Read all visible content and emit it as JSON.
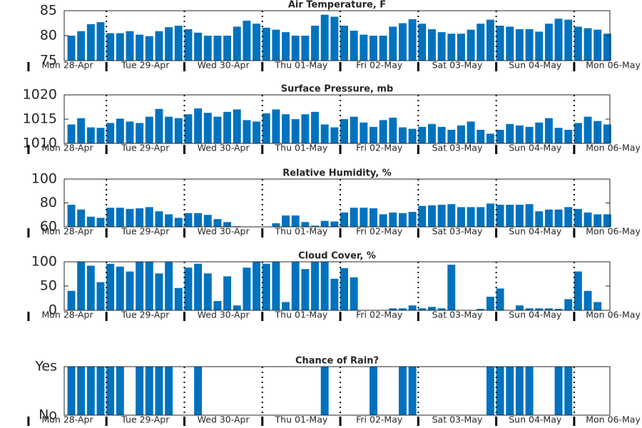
{
  "chart_data": [
    {
      "type": "bar",
      "title": "Air Temperature, F",
      "color": "#0072bd",
      "x": [
        12,
        15,
        18,
        21,
        24,
        27,
        30,
        33,
        36,
        39,
        42,
        45,
        48,
        51,
        54,
        57,
        60,
        63,
        66,
        69,
        72,
        75,
        78,
        81,
        84,
        87,
        90,
        93,
        96,
        99,
        102,
        105,
        108,
        111,
        114,
        117,
        120,
        123,
        126,
        129,
        132,
        135,
        138,
        141,
        144,
        147,
        150,
        153,
        156,
        159,
        162,
        165,
        168,
        171,
        174,
        177
      ],
      "values": [
        80.0,
        80.9,
        82.3,
        82.7,
        80.5,
        80.5,
        80.9,
        80.2,
        79.9,
        80.9,
        81.7,
        82.0,
        81.3,
        80.6,
        80.0,
        80.0,
        80.0,
        81.8,
        83.0,
        82.4,
        81.6,
        81.2,
        80.7,
        80.0,
        80.0,
        82.0,
        84.2,
        83.8,
        82.0,
        81.0,
        80.2,
        80.0,
        80.0,
        81.8,
        82.5,
        83.3,
        82.4,
        81.3,
        80.7,
        80.4,
        80.4,
        81.2,
        82.4,
        83.2,
        82.0,
        81.8,
        81.3,
        81.3,
        80.8,
        82.4,
        83.4,
        83.2,
        81.8,
        81.5,
        81.2,
        80.4
      ],
      "xlim": [
        11,
        179
      ],
      "xticks": [
        {
          "value": 12,
          "label": "Mon 28-Apr"
        },
        {
          "value": 36,
          "label": "Tue 29-Apr"
        },
        {
          "value": 60,
          "label": "Wed 30-Apr"
        },
        {
          "value": 84,
          "label": "Thu 01-May"
        },
        {
          "value": 108,
          "label": "Fri 02-May"
        },
        {
          "value": 132,
          "label": "Sat 03-May"
        },
        {
          "value": 156,
          "label": "Sun 04-May"
        },
        {
          "value": 180,
          "label": "Mon 06-May"
        }
      ],
      "ylim": [
        75,
        85
      ],
      "yticks": [
        75,
        80,
        85
      ]
    },
    {
      "type": "bar",
      "title": "Surface Pressure, mb",
      "color": "#0072bd",
      "x": [
        12,
        15,
        18,
        21,
        24,
        27,
        30,
        33,
        36,
        39,
        42,
        45,
        48,
        51,
        54,
        57,
        60,
        63,
        66,
        69,
        72,
        75,
        78,
        81,
        84,
        87,
        90,
        93,
        96,
        99,
        102,
        105,
        108,
        111,
        114,
        117,
        120,
        123,
        126,
        129,
        132,
        135,
        138,
        141,
        144,
        147,
        150,
        153,
        156,
        159,
        162,
        165,
        168,
        171,
        174,
        177
      ],
      "values": [
        1013.9,
        1015.2,
        1013.3,
        1013.2,
        1014.2,
        1015.1,
        1014.5,
        1014.2,
        1015.5,
        1017.1,
        1015.5,
        1015.2,
        1016.0,
        1017.2,
        1016.3,
        1015.5,
        1016.5,
        1017.0,
        1014.8,
        1014.5,
        1016.2,
        1017.0,
        1016.0,
        1015.0,
        1016.0,
        1016.5,
        1013.9,
        1013.3,
        1015.0,
        1015.5,
        1014.3,
        1013.4,
        1014.8,
        1015.3,
        1013.3,
        1013.0,
        1013.4,
        1014.0,
        1013.4,
        1012.8,
        1013.7,
        1014.5,
        1012.8,
        1012.0,
        1012.8,
        1014.0,
        1013.7,
        1013.4,
        1014.3,
        1015.2,
        1013.2,
        1012.8,
        1014.2,
        1015.5,
        1014.6,
        1013.9
      ],
      "xlim": [
        11,
        179
      ],
      "xticks": [
        {
          "value": 12,
          "label": "Mon 28-Apr"
        },
        {
          "value": 36,
          "label": "Tue 29-Apr"
        },
        {
          "value": 60,
          "label": "Wed 30-Apr"
        },
        {
          "value": 84,
          "label": "Thu 01-May"
        },
        {
          "value": 108,
          "label": "Fri 02-May"
        },
        {
          "value": 132,
          "label": "Sat 03-May"
        },
        {
          "value": 156,
          "label": "Sun 04-May"
        },
        {
          "value": 180,
          "label": "Mon 06-May"
        }
      ],
      "ylim": [
        1010,
        1020
      ],
      "yticks": [
        1010,
        1015,
        1020
      ]
    },
    {
      "type": "bar",
      "title": "Relative Humidity, %",
      "color": "#0072bd",
      "x": [
        12,
        15,
        18,
        21,
        24,
        27,
        30,
        33,
        36,
        39,
        42,
        45,
        48,
        51,
        54,
        57,
        60,
        63,
        66,
        69,
        72,
        75,
        78,
        81,
        84,
        87,
        90,
        93,
        96,
        99,
        102,
        105,
        108,
        111,
        114,
        117,
        120,
        123,
        126,
        129,
        132,
        135,
        138,
        141,
        144,
        147,
        150,
        153,
        156,
        159,
        162,
        165,
        168,
        171,
        174,
        177
      ],
      "values": [
        78.5,
        74.5,
        68.5,
        67.5,
        76,
        76,
        75,
        75.5,
        76.5,
        73,
        70.5,
        67.5,
        71.5,
        71.5,
        70,
        66.5,
        64,
        60.5,
        58,
        58,
        58,
        63,
        69.5,
        69.5,
        64,
        61,
        65,
        64.5,
        72,
        76,
        76,
        75.5,
        70.5,
        72,
        71.5,
        72.5,
        77.5,
        78,
        78.5,
        79,
        76.5,
        76.5,
        76.5,
        79.5,
        78.5,
        78.5,
        78.5,
        79,
        73,
        74.5,
        74.5,
        76.5,
        75,
        72,
        70.5,
        70.5
      ],
      "xlim": [
        11,
        179
      ],
      "xticks": [
        {
          "value": 12,
          "label": "Mon 28-Apr"
        },
        {
          "value": 36,
          "label": "Tue 29-Apr"
        },
        {
          "value": 60,
          "label": "Wed 30-Apr"
        },
        {
          "value": 84,
          "label": "Thu 01-May"
        },
        {
          "value": 108,
          "label": "Fri 02-May"
        },
        {
          "value": 132,
          "label": "Sat 03-May"
        },
        {
          "value": 156,
          "label": "Sun 04-May"
        },
        {
          "value": 180,
          "label": "Mon 06-May"
        }
      ],
      "ylim": [
        60,
        100
      ],
      "yticks": [
        60,
        80,
        100
      ]
    },
    {
      "type": "bar",
      "title": "Cloud Cover, %",
      "color": "#0072bd",
      "x": [
        12,
        15,
        18,
        21,
        24,
        27,
        30,
        33,
        36,
        39,
        42,
        45,
        48,
        51,
        54,
        57,
        60,
        63,
        66,
        69,
        72,
        75,
        78,
        81,
        84,
        87,
        90,
        93,
        96,
        99,
        102,
        105,
        108,
        111,
        114,
        117,
        120,
        123,
        126,
        129,
        132,
        135,
        138,
        141,
        144,
        147,
        150,
        153,
        156,
        159,
        162,
        165,
        168,
        171,
        174,
        177
      ],
      "values": [
        40,
        100,
        92,
        58,
        96,
        90,
        80,
        100,
        100,
        76,
        100,
        46,
        88,
        96,
        76,
        19,
        70,
        10,
        88,
        100,
        96,
        100,
        17,
        100,
        85,
        100,
        100,
        65,
        87,
        68,
        0,
        0,
        0,
        4,
        4,
        10,
        4,
        7,
        4,
        94,
        0,
        0,
        3,
        28,
        45,
        0,
        10,
        4,
        4,
        4,
        3,
        23,
        80,
        40,
        17,
        0
      ],
      "xlim": [
        11,
        179
      ],
      "xticks": [
        {
          "value": 12,
          "label": "Mon 28-Apr"
        },
        {
          "value": 36,
          "label": "Tue 29-Apr"
        },
        {
          "value": 60,
          "label": "Wed 30-Apr"
        },
        {
          "value": 84,
          "label": "Thu 01-May"
        },
        {
          "value": 108,
          "label": "Fri 02-May"
        },
        {
          "value": 132,
          "label": "Sat 03-May"
        },
        {
          "value": 156,
          "label": "Sun 04-May"
        },
        {
          "value": 180,
          "label": "Mon 06-May"
        }
      ],
      "ylim": [
        0,
        100
      ],
      "yticks": [
        0,
        50,
        100
      ]
    },
    {
      "type": "bar",
      "title": "Chance of Rain?",
      "color": "#0072bd",
      "x": [
        12,
        15,
        18,
        21,
        24,
        27,
        30,
        33,
        36,
        39,
        42,
        45,
        48,
        51,
        54,
        57,
        60,
        63,
        66,
        69,
        72,
        75,
        78,
        81,
        84,
        87,
        90,
        93,
        96,
        99,
        102,
        105,
        108,
        111,
        114,
        117,
        120,
        123,
        126,
        129,
        132,
        135,
        138,
        141,
        144,
        147,
        150,
        153,
        156,
        159,
        162,
        165,
        168,
        171,
        174,
        177
      ],
      "values": [
        1,
        1,
        1,
        1,
        1,
        1,
        0,
        1,
        1,
        1,
        1,
        0,
        0,
        1,
        0,
        0,
        0,
        0,
        0,
        0,
        0,
        0,
        0,
        0,
        0,
        0,
        1,
        0,
        0,
        0,
        0,
        1,
        0,
        0,
        1,
        1,
        0,
        0,
        0,
        0,
        0,
        0,
        0,
        1,
        1,
        1,
        1,
        1,
        0,
        0,
        1,
        1,
        0,
        0,
        0,
        0
      ],
      "xlim": [
        11,
        179
      ],
      "xticks": [
        {
          "value": 12,
          "label": "Mon 28-Apr"
        },
        {
          "value": 36,
          "label": "Tue 29-Apr"
        },
        {
          "value": 60,
          "label": "Wed 30-Apr"
        },
        {
          "value": 84,
          "label": "Thu 01-May"
        },
        {
          "value": 108,
          "label": "Fri 02-May"
        },
        {
          "value": 132,
          "label": "Sat 03-May"
        },
        {
          "value": 156,
          "label": "Sun 04-May"
        },
        {
          "value": 180,
          "label": "Mon 06-May"
        }
      ],
      "ylim": [
        0,
        1
      ],
      "yticks": [
        {
          "value": 0,
          "label": "No"
        },
        {
          "value": 1,
          "label": "Yes"
        }
      ]
    }
  ]
}
